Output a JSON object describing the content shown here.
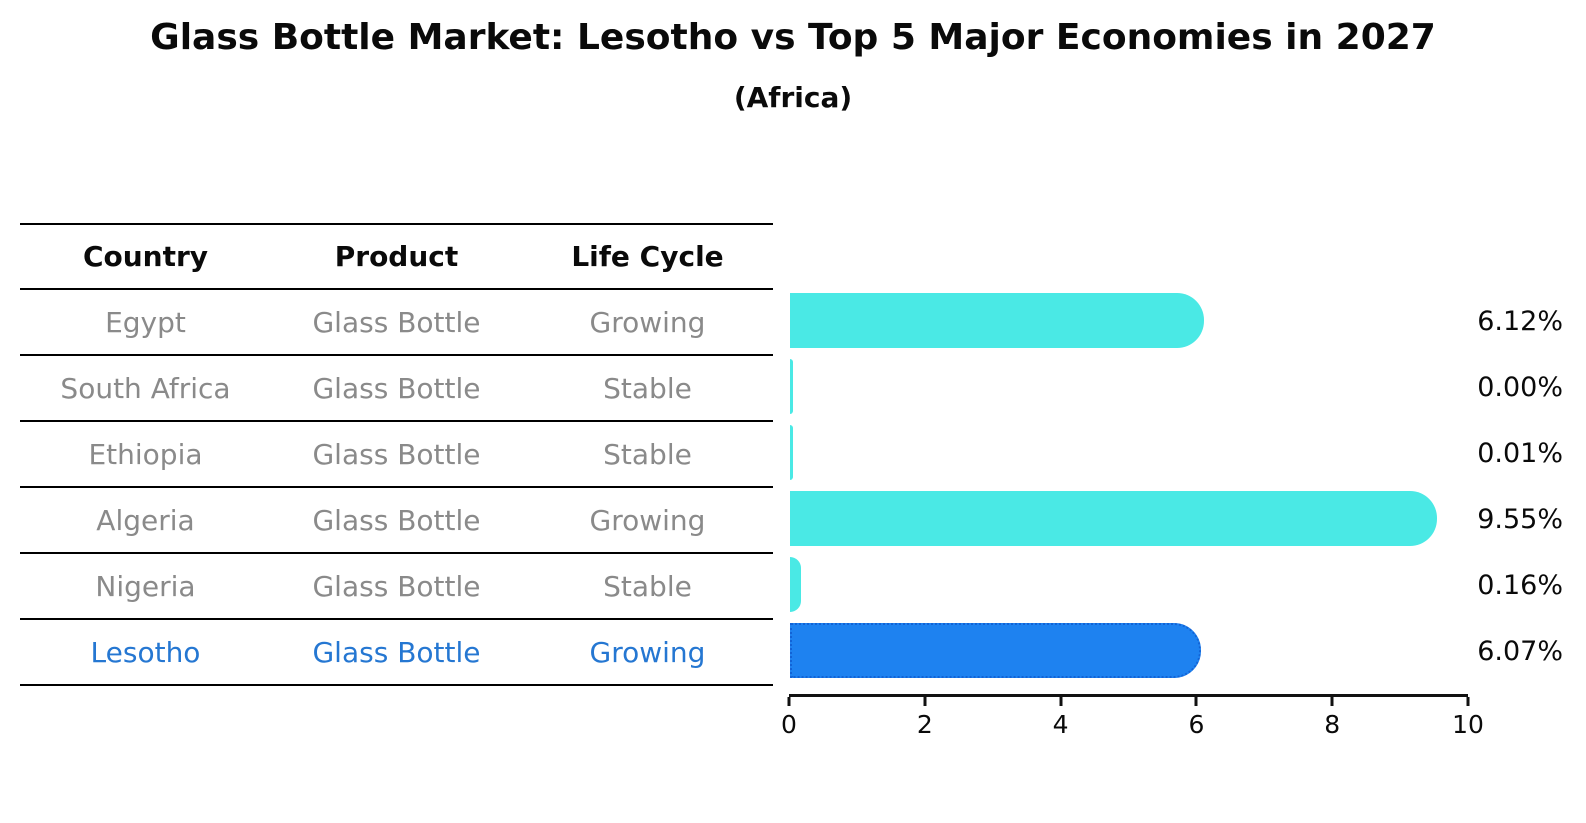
{
  "header": {
    "title": "Glass Bottle Market: Lesotho vs Top 5 Major Economies in 2027",
    "subtitle": "(Africa)"
  },
  "table": {
    "columns": [
      "Country",
      "Product",
      "Life Cycle"
    ],
    "rows": [
      {
        "country": "Egypt",
        "product": "Glass Bottle",
        "life_cycle": "Growing",
        "highlight": false
      },
      {
        "country": "South Africa",
        "product": "Glass Bottle",
        "life_cycle": "Stable",
        "highlight": false
      },
      {
        "country": "Ethiopia",
        "product": "Glass Bottle",
        "life_cycle": "Stable",
        "highlight": false
      },
      {
        "country": "Algeria",
        "product": "Glass Bottle",
        "life_cycle": "Growing",
        "highlight": false
      },
      {
        "country": "Nigeria",
        "product": "Glass Bottle",
        "life_cycle": "Stable",
        "highlight": false
      },
      {
        "country": "Lesotho",
        "product": "Glass Bottle",
        "life_cycle": "Growing",
        "highlight": true
      }
    ]
  },
  "chart_data": {
    "type": "bar",
    "orientation": "horizontal",
    "title": "Glass Bottle Market: Lesotho vs Top 5 Major Economies in 2027",
    "subtitle": "(Africa)",
    "categories": [
      "Egypt",
      "South Africa",
      "Ethiopia",
      "Algeria",
      "Nigeria",
      "Lesotho"
    ],
    "values": [
      6.12,
      0.0,
      0.01,
      9.55,
      0.16,
      6.07
    ],
    "value_labels": [
      "6.12%",
      "0.00%",
      "0.01%",
      "9.55%",
      "0.16%",
      "6.07%"
    ],
    "xlim": [
      0,
      10
    ],
    "xticks": [
      0,
      2,
      4,
      6,
      8,
      10
    ],
    "grid": false,
    "legend": false,
    "bar_color": "#4AE9E5",
    "highlight_index": 5,
    "highlight_bar_color": "#1E82F0",
    "highlight_border_color": "#1263D6",
    "highlight_text_color": "#2577D2",
    "table_text_color": "#8A8A8A"
  }
}
